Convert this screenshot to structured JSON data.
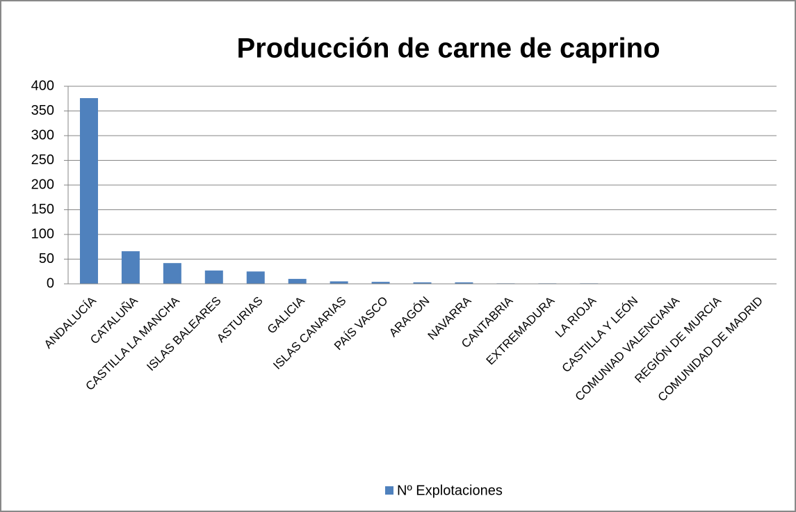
{
  "chart_data": {
    "type": "bar",
    "title": "Producción de carne de caprino",
    "categories": [
      "ANDALUCÍA",
      "CATALUÑA",
      "CASTILLA LA MANCHA",
      "ISLAS BALEARES",
      "ASTURIAS",
      "GALICIA",
      "ISLAS CANARIAS",
      "PAÍS VASCO",
      "ARAGÓN",
      "NAVARRA",
      "CANTABRIA",
      "EXTREMADURA",
      "LA RIOJA",
      "CASTILLA Y LEÓN",
      "COMUNIAD VALENCIANA",
      "REGIÓN DE MURCIA",
      "COMUNIDAD DE MADRID"
    ],
    "series": [
      {
        "name": "Nº Explotaciones",
        "color": "#4f81bd",
        "values": [
          376,
          66,
          42,
          27,
          25,
          10,
          5,
          4,
          3,
          3,
          1,
          1,
          1,
          0,
          0,
          0,
          0
        ]
      }
    ],
    "ylim": [
      0,
      400
    ],
    "yticks": [
      0,
      50,
      100,
      150,
      200,
      250,
      300,
      350,
      400
    ],
    "grid": true,
    "legend": "bottom"
  }
}
